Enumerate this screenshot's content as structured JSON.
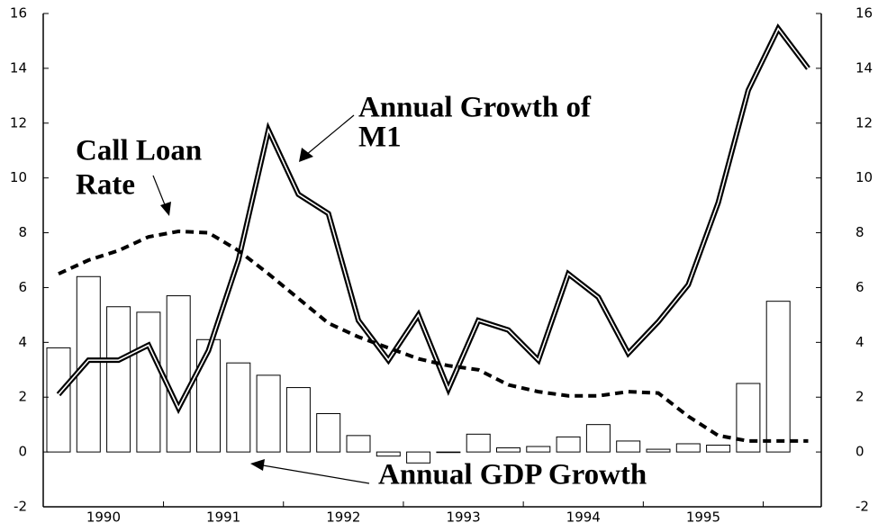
{
  "chart_data": {
    "type": "bar",
    "categories": [
      null,
      null,
      null,
      null,
      null,
      null,
      null,
      null,
      null,
      null,
      null,
      null,
      null,
      null,
      null,
      null,
      null,
      null,
      null,
      null,
      null,
      null,
      null,
      null,
      null,
      null
    ],
    "year_labels": [
      1990,
      1991,
      1992,
      1993,
      1994,
      1995
    ],
    "ylim": [
      -2,
      16
    ],
    "yticks": [
      -2,
      0,
      2,
      4,
      6,
      8,
      10,
      12,
      14,
      16
    ],
    "y2lim": [
      -2,
      16
    ],
    "y2ticks": [
      -2,
      0,
      2,
      4,
      6,
      8,
      10,
      12,
      14,
      16
    ],
    "grid": false,
    "series": [
      {
        "type": "bar",
        "color": "#ffffff",
        "values": [
          3.8,
          6.4,
          5.3,
          5.1,
          5.7,
          4.1,
          3.25,
          2.8,
          2.35,
          1.4,
          0.6,
          -0.15,
          -0.4,
          -0.02,
          0.65,
          0.15,
          0.2,
          0.55,
          1.0,
          0.4,
          0.1,
          0.3,
          0.25,
          2.5,
          5.5,
          null
        ]
      },
      {
        "type": "line",
        "style": "double",
        "color": "#000000",
        "values": [
          2.1,
          3.35,
          3.35,
          3.9,
          1.6,
          3.7,
          7.0,
          11.75,
          9.4,
          8.7,
          4.8,
          3.35,
          5.0,
          2.3,
          4.8,
          4.45,
          3.35,
          6.5,
          5.65,
          3.6,
          4.75,
          6.1,
          9.1,
          13.2,
          15.45,
          14.0
        ]
      },
      {
        "type": "line",
        "style": "dashed",
        "color": "#000000",
        "values": [
          6.5,
          7.0,
          7.35,
          7.85,
          8.05,
          8.0,
          7.35,
          6.5,
          5.6,
          4.7,
          4.2,
          3.8,
          3.4,
          3.15,
          3.0,
          2.45,
          2.2,
          2.05,
          2.05,
          2.2,
          2.15,
          1.3,
          0.6,
          0.4,
          0.4,
          0.4
        ]
      }
    ],
    "annotations": [
      {
        "lines": [
          "Annual Growth of",
          "M1"
        ]
      },
      {
        "lines": [
          "Call Loan",
          "Rate"
        ]
      },
      {
        "lines": [
          "Annual GDP Growth"
        ]
      }
    ]
  }
}
